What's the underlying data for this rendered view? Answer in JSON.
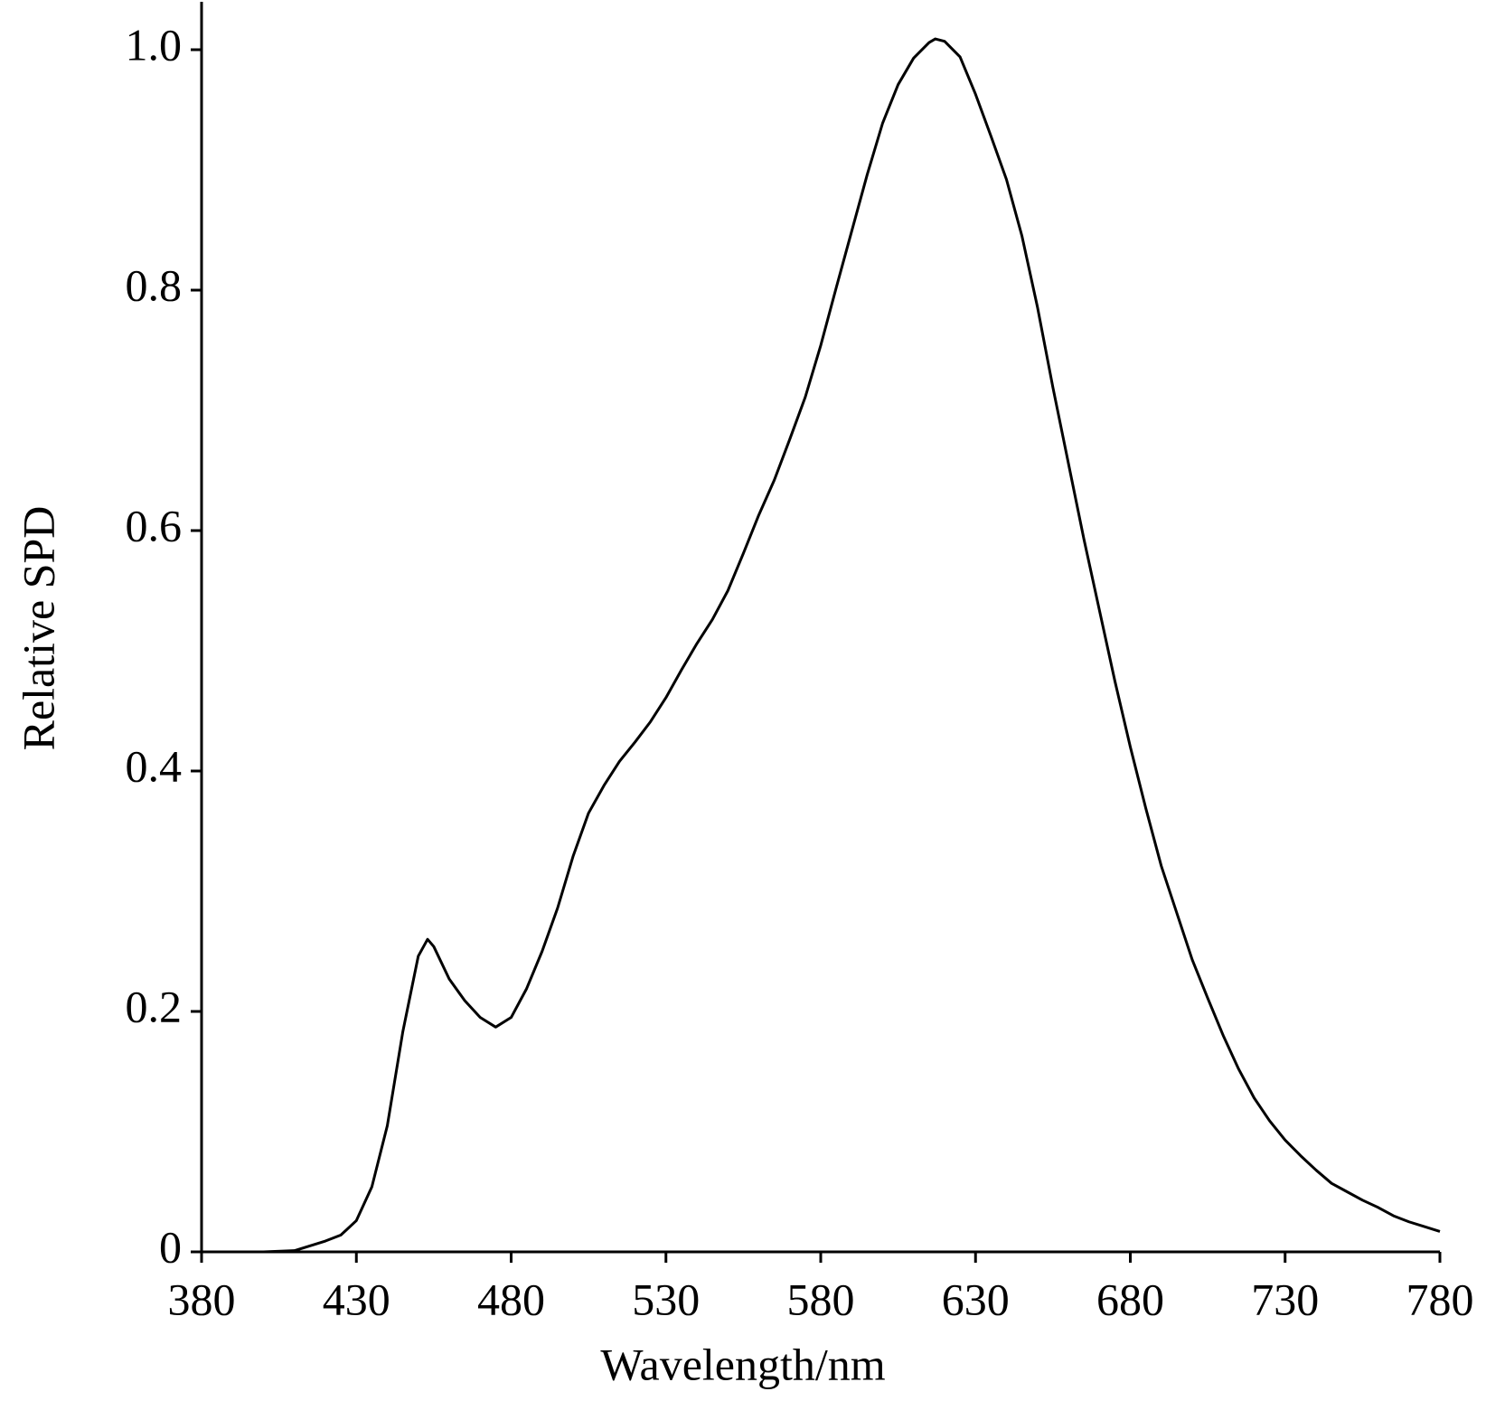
{
  "chart_data": {
    "type": "line",
    "xlabel": "Wavelength/nm",
    "ylabel": "Relative SPD",
    "xlim": [
      380,
      780
    ],
    "xticks": [
      380,
      430,
      480,
      530,
      580,
      630,
      680,
      730,
      780
    ],
    "ylim": [
      0,
      1.04
    ],
    "yticks": [
      0,
      0.2,
      0.4,
      0.6,
      0.8,
      {
        "value": 1,
        "label": "1.0"
      }
    ],
    "grid": false,
    "series": [
      {
        "color": "#000000",
        "x": [
          380,
          390,
          400,
          410,
          420,
          425,
          430,
          435,
          440,
          445,
          450,
          453,
          455,
          460,
          465,
          470,
          475,
          480,
          485,
          490,
          495,
          500,
          505,
          510,
          515,
          520,
          525,
          530,
          535,
          540,
          545,
          550,
          555,
          560,
          565,
          570,
          575,
          580,
          585,
          590,
          595,
          600,
          605,
          610,
          615,
          617,
          620,
          625,
          630,
          635,
          640,
          645,
          650,
          655,
          660,
          665,
          670,
          675,
          680,
          685,
          690,
          695,
          700,
          705,
          710,
          715,
          720,
          725,
          730,
          735,
          740,
          745,
          750,
          755,
          760,
          765,
          770,
          775,
          780
        ],
        "values": [
          0,
          0,
          0,
          0.001,
          0.009,
          0.014,
          0.026,
          0.054,
          0.105,
          0.183,
          0.246,
          0.26,
          0.254,
          0.227,
          0.209,
          0.195,
          0.187,
          0.195,
          0.219,
          0.25,
          0.286,
          0.329,
          0.365,
          0.388,
          0.408,
          0.424,
          0.441,
          0.461,
          0.484,
          0.506,
          0.526,
          0.55,
          0.581,
          0.613,
          0.642,
          0.676,
          0.711,
          0.754,
          0.802,
          0.849,
          0.896,
          0.939,
          0.971,
          0.993,
          1.006,
          1.009,
          1.007,
          0.994,
          0.963,
          0.928,
          0.892,
          0.845,
          0.786,
          0.719,
          0.656,
          0.593,
          0.534,
          0.475,
          0.42,
          0.369,
          0.321,
          0.282,
          0.243,
          0.211,
          0.18,
          0.152,
          0.128,
          0.109,
          0.093,
          0.08,
          0.068,
          0.057,
          0.05,
          0.043,
          0.037,
          0.03,
          0.025,
          0.021,
          0.017
        ]
      }
    ]
  }
}
